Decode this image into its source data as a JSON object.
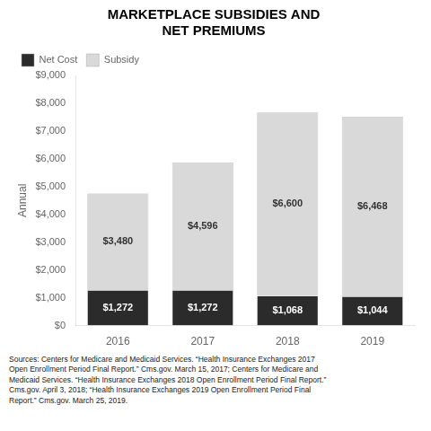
{
  "chart_data": {
    "type": "bar",
    "title": "MARKETPLACE SUBSIDIES AND\nNET PREMIUMS",
    "categories": [
      "2016",
      "2017",
      "2018",
      "2019"
    ],
    "series": [
      {
        "name": "Net Cost",
        "color": "#2b2b2b",
        "values": [
          1272,
          1272,
          1068,
          1044
        ],
        "value_labels": [
          "$1,272",
          "$1,272",
          "$1,068",
          "$1,044"
        ]
      },
      {
        "name": "Subsidy",
        "color": "#d9d9d9",
        "values": [
          3480,
          4596,
          6600,
          6468
        ],
        "value_labels": [
          "$3,480",
          "$4,596",
          "$6,600",
          "$6,468"
        ]
      }
    ],
    "stacked": true,
    "data_labels": true,
    "ylabel": "Annual",
    "ylim": [
      0,
      9000
    ],
    "yticks": [
      {
        "value": 0,
        "label": "$0"
      },
      {
        "value": 1000,
        "label": "$1,000"
      },
      {
        "value": 2000,
        "label": "$2,000"
      },
      {
        "value": 3000,
        "label": "$3,000"
      },
      {
        "value": 4000,
        "label": "$4,000"
      },
      {
        "value": 5000,
        "label": "$5,000"
      },
      {
        "value": 6000,
        "label": "$6,000"
      },
      {
        "value": 7000,
        "label": "$7,000"
      },
      {
        "value": 8000,
        "label": "$8,000"
      },
      {
        "value": 9000,
        "label": "$9,000"
      }
    ],
    "grid": false,
    "legend": "upper left",
    "footnote": "Sources: Centers for Medicare and Medicaid Services. “Health Insurance Exchanges 2017\nOpen Enrollment Period Final Report.” Cms.gov. March 15, 2017; Centers for Medicare and\nMedicaid Services. “Health Insurance Exchanges 2018 Open Enrollment Period Final Report.”\nCms.gov. April 3, 2018; “Health Insurance Exchanges 2019 Open Enrollment Period Final\nReport.” Cms.gov. March 25, 2019."
  }
}
